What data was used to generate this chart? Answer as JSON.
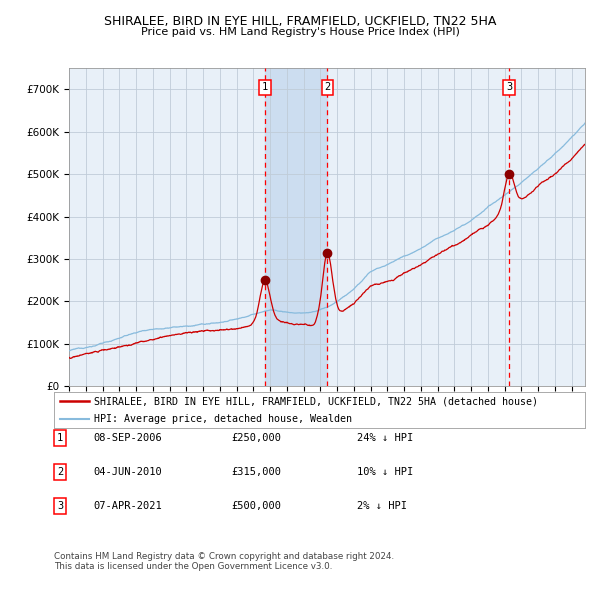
{
  "title": "SHIRALEE, BIRD IN EYE HILL, FRAMFIELD, UCKFIELD, TN22 5HA",
  "subtitle": "Price paid vs. HM Land Registry's House Price Index (HPI)",
  "xlim_start": 1995.0,
  "xlim_end": 2025.8,
  "ylim": [
    0,
    750000
  ],
  "yticks": [
    0,
    100000,
    200000,
    300000,
    400000,
    500000,
    600000,
    700000
  ],
  "ytick_labels": [
    "£0",
    "£100K",
    "£200K",
    "£300K",
    "£400K",
    "£500K",
    "£600K",
    "£700K"
  ],
  "sale_dates": [
    2006.69,
    2010.42,
    2021.27
  ],
  "sale_prices": [
    250000,
    315000,
    500000
  ],
  "sale_labels": [
    "1",
    "2",
    "3"
  ],
  "shade_regions": [
    [
      2006.69,
      2010.42
    ]
  ],
  "legend_entries": [
    {
      "label": "SHIRALEE, BIRD IN EYE HILL, FRAMFIELD, UCKFIELD, TN22 5HA (detached house)",
      "color": "#cc0000",
      "lw": 1.8
    },
    {
      "label": "HPI: Average price, detached house, Wealden",
      "color": "#88bbdd",
      "lw": 1.5
    }
  ],
  "table_rows": [
    {
      "num": "1",
      "date": "08-SEP-2006",
      "price": "£250,000",
      "hpi": "24% ↓ HPI"
    },
    {
      "num": "2",
      "date": "04-JUN-2010",
      "price": "£315,000",
      "hpi": "10% ↓ HPI"
    },
    {
      "num": "3",
      "date": "07-APR-2021",
      "price": "£500,000",
      "hpi": "2% ↓ HPI"
    }
  ],
  "footnote": "Contains HM Land Registry data © Crown copyright and database right 2024.\nThis data is licensed under the Open Government Licence v3.0.",
  "bg_color": "#ffffff",
  "plot_bg_color": "#e8f0f8",
  "grid_color": "#c0ccd8",
  "hpi_color": "#88bbdd",
  "sale_color": "#cc0000",
  "shade_color": "#ccddf0"
}
